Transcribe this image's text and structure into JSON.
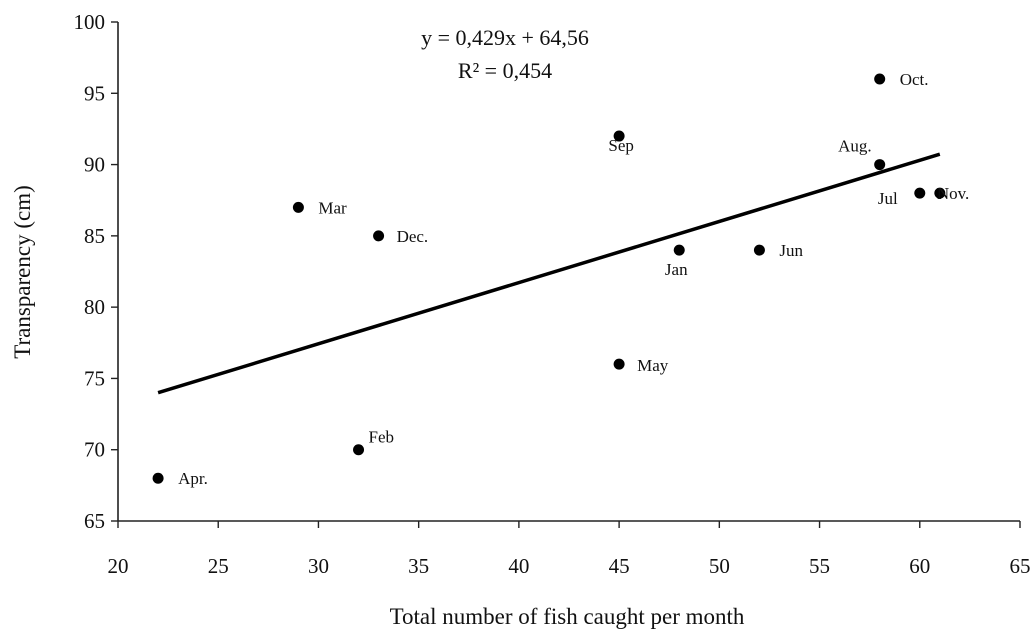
{
  "chart_data": {
    "type": "scatter",
    "xlabel": "Total number of fish caught per month",
    "ylabel": "Transparency (cm)",
    "xlim": [
      20,
      65
    ],
    "ylim": [
      65,
      100
    ],
    "x_ticks": [
      "20",
      "25",
      "30",
      "35",
      "40",
      "45",
      "50",
      "55",
      "60",
      "65"
    ],
    "y_ticks": [
      "65",
      "70",
      "75",
      "80",
      "85",
      "90",
      "95",
      "100"
    ],
    "grid": false,
    "points": [
      {
        "label": "Apr.",
        "x": 22,
        "y": 68
      },
      {
        "label": "Feb",
        "x": 32,
        "y": 70
      },
      {
        "label": "Mar",
        "x": 29,
        "y": 87
      },
      {
        "label": "Dec.",
        "x": 33,
        "y": 85
      },
      {
        "label": "Sep",
        "x": 45,
        "y": 92
      },
      {
        "label": "May",
        "x": 45,
        "y": 76
      },
      {
        "label": "Jan",
        "x": 48,
        "y": 84
      },
      {
        "label": "Jun",
        "x": 52,
        "y": 84
      },
      {
        "label": "Oct.",
        "x": 58,
        "y": 96
      },
      {
        "label": "Aug.",
        "x": 58,
        "y": 90
      },
      {
        "label": "Jul",
        "x": 60,
        "y": 88
      },
      {
        "label": "Nov.",
        "x": 61,
        "y": 88
      }
    ],
    "trendline": {
      "type": "linear",
      "slope": 0.429,
      "intercept": 64.56,
      "x_range": [
        22,
        61
      ],
      "equation": "y = 0,429x + 64,56",
      "r_squared": "R² = 0,454"
    }
  }
}
